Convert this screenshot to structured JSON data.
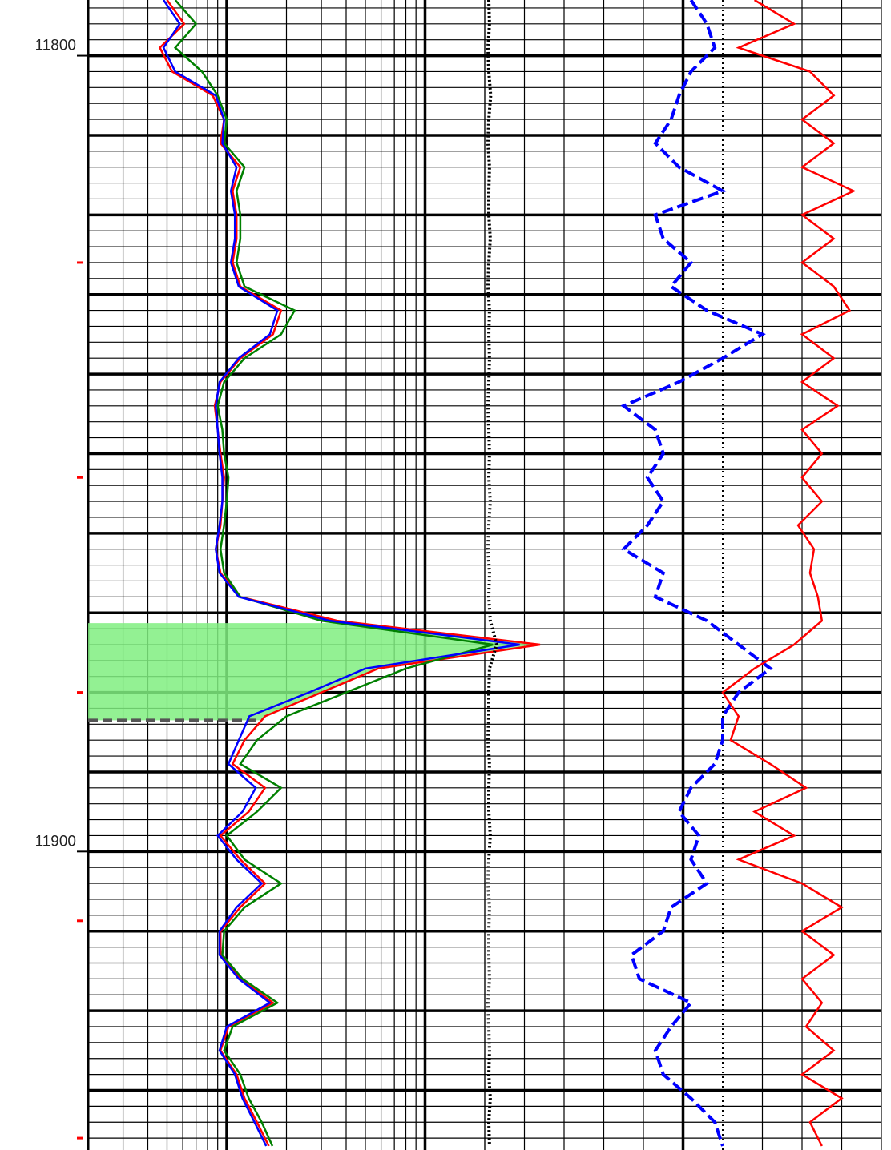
{
  "chart_data": {
    "type": "well-log",
    "ylim": [
      11793,
      11937.5
    ],
    "yticks": [
      11800,
      11900
    ],
    "depth_markers": [
      11826,
      11853,
      11880,
      11908.7,
      11936
    ],
    "depth_marker_color": "#ff0000",
    "depths": [
      11793,
      11796,
      11799,
      11802,
      11805,
      11808,
      11811,
      11814,
      11817,
      11820,
      11823,
      11826,
      11829,
      11832,
      11835,
      11838,
      11841,
      11844,
      11847,
      11850,
      11853,
      11856,
      11859,
      11862,
      11865,
      11868,
      11871,
      11874,
      11877,
      11880,
      11883,
      11886,
      11889,
      11892,
      11895,
      11898,
      11901,
      11904,
      11907,
      11910,
      11913,
      11916,
      11919,
      11922,
      11925,
      11928,
      11931,
      11934,
      11937
    ],
    "shading": {
      "from": 11871.3,
      "to": 11883.5,
      "color": "#80ee80",
      "series": [
        0,
        0
      ]
    },
    "tracks": [
      {
        "scale": "log",
        "xlim": [
          0.2,
          20
        ],
        "series": [
          {
            "color": "#ff0000",
            "dash": "solid",
            "values": [
              0.5,
              0.61,
              0.46,
              0.53,
              0.85,
              0.97,
              0.93,
              1.17,
              1.07,
              1.12,
              1.12,
              1.07,
              1.17,
              1.88,
              1.71,
              1.17,
              0.93,
              0.87,
              0.9,
              0.93,
              0.97,
              0.95,
              0.93,
              0.88,
              0.93,
              1.17,
              3.6,
              38,
              5.8,
              3.0,
              1.56,
              1.23,
              1.07,
              1.56,
              1.29,
              0.93,
              1.17,
              1.56,
              1.17,
              0.93,
              0.93,
              1.17,
              1.71,
              1.02,
              0.93,
              1.12,
              1.23,
              1.42,
              1.63
            ]
          },
          {
            "color": "#008000",
            "dash": "solid",
            "values": [
              0.55,
              0.7,
              0.55,
              0.75,
              0.9,
              1.0,
              0.97,
              1.23,
              1.12,
              1.17,
              1.17,
              1.12,
              1.23,
              2.2,
              1.88,
              1.23,
              0.97,
              0.9,
              0.95,
              0.97,
              1.02,
              1.0,
              0.97,
              0.93,
              0.97,
              1.17,
              3.0,
              22,
              8.0,
              4.0,
              2.0,
              1.42,
              1.17,
              1.88,
              1.42,
              1.0,
              1.23,
              1.88,
              1.23,
              0.97,
              0.95,
              1.2,
              1.8,
              1.07,
              0.97,
              1.17,
              1.29,
              1.5,
              1.7
            ]
          },
          {
            "color": "#0000ff",
            "dash": "solid",
            "values": [
              0.48,
              0.58,
              0.48,
              0.55,
              0.88,
              0.97,
              0.95,
              1.12,
              1.05,
              1.1,
              1.1,
              1.05,
              1.15,
              1.8,
              1.65,
              1.15,
              0.92,
              0.88,
              0.9,
              0.92,
              0.95,
              0.95,
              0.92,
              0.88,
              0.92,
              1.15,
              3.3,
              30,
              5.0,
              2.6,
              1.3,
              1.15,
              1.02,
              1.4,
              1.2,
              0.9,
              1.12,
              1.5,
              1.12,
              0.92,
              0.92,
              1.15,
              1.65,
              1.0,
              0.92,
              1.1,
              1.2,
              1.38,
              1.58
            ]
          }
        ]
      },
      {
        "scale": "linear",
        "xlim": [
          0,
          10
        ],
        "heavy_line": 5,
        "dotted_line": 6,
        "series": [
          {
            "color": "#000000",
            "dash": "dot",
            "values": [
              0.1,
              0.12,
              0.08,
              0.1,
              0.15,
              0.1,
              0.08,
              0.12,
              0.1,
              0.1,
              0.14,
              0.1,
              0.08,
              0.12,
              0.1,
              0.12,
              0.1,
              0.08,
              0.1,
              0.12,
              0.1,
              0.14,
              0.1,
              0.08,
              0.12,
              0.1,
              0.14,
              0.3,
              0.12,
              0.1,
              0.1,
              0.08,
              0.12,
              0.1,
              0.1,
              0.14,
              0.1,
              0.08,
              0.12,
              0.1,
              0.1,
              0.12,
              0.08,
              0.1,
              0.12,
              0.1,
              0.14,
              0.1,
              0.12
            ]
          },
          {
            "color": "#0000ff",
            "dash": "dash",
            "values": [
              5.2,
              5.6,
              5.8,
              5.2,
              4.9,
              4.7,
              4.3,
              4.9,
              6.0,
              4.3,
              4.5,
              5.2,
              4.7,
              5.6,
              7.0,
              6.0,
              4.9,
              3.5,
              4.3,
              4.5,
              4.1,
              4.5,
              4.1,
              3.5,
              4.5,
              4.3,
              5.6,
              6.4,
              7.2,
              6.4,
              6.0,
              6.0,
              5.8,
              5.2,
              4.9,
              5.4,
              5.2,
              5.6,
              4.7,
              4.5,
              3.7,
              3.9,
              5.2,
              4.7,
              4.3,
              4.5,
              5.2,
              5.8,
              6.0
            ]
          },
          {
            "color": "#ff0000",
            "dash": "solid",
            "values": [
              6.8,
              7.8,
              6.4,
              8.2,
              8.8,
              8.0,
              8.8,
              8.0,
              9.3,
              8.0,
              8.8,
              8.0,
              8.8,
              9.2,
              8.0,
              8.8,
              8.0,
              8.9,
              8.0,
              8.5,
              8.0,
              8.5,
              7.9,
              8.3,
              8.2,
              8.4,
              8.5,
              7.8,
              6.8,
              6.0,
              6.4,
              6.2,
              7.2,
              8.1,
              6.8,
              7.8,
              6.4,
              8.0,
              9.0,
              8.0,
              8.8,
              8.0,
              8.5,
              8.1,
              8.8,
              8.0,
              9.0,
              8.2,
              8.5
            ]
          }
        ]
      }
    ]
  }
}
